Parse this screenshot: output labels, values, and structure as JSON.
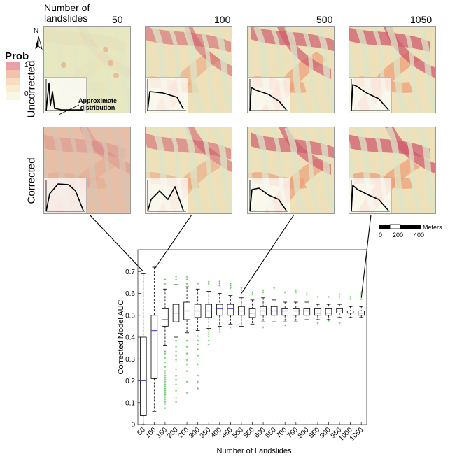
{
  "header": {
    "count_label": "Number of\nlandslides",
    "columns": [
      "50",
      "100",
      "500",
      "1050"
    ]
  },
  "rows": [
    "Uncorrected",
    "Corrected"
  ],
  "legend": {
    "title": "Prob",
    "ticks": [
      "1",
      "0"
    ],
    "colors": [
      "#e8a0a6",
      "#f1c3ad",
      "#f6dcc0",
      "#f8edcf",
      "#fbf6e4"
    ]
  },
  "north_label": "N",
  "annotation": "Approximate\ndistribution",
  "scalebar": {
    "unit": "Meters",
    "ticks": [
      "0",
      "200",
      "400"
    ]
  },
  "colors": {
    "uncorrected_low": "#e8e8c0",
    "ridge": "#cf5b6e",
    "mid": "#eca079",
    "valley": "#dce6c8",
    "outlier": "#3db23d",
    "box": "#000000",
    "median": "#5555cc"
  },
  "chart_data": {
    "type": "box",
    "title": "",
    "xlabel": "Number of Landslides",
    "ylabel": "Corrected Model AUC",
    "ylim": [
      0,
      0.8
    ],
    "yticks": [
      0,
      0.1,
      0.2,
      0.3,
      0.4,
      0.5,
      0.6,
      0.7
    ],
    "categories": [
      "50",
      "100",
      "150",
      "200",
      "250",
      "300",
      "350",
      "400",
      "450",
      "500",
      "550",
      "600",
      "650",
      "700",
      "750",
      "800",
      "850",
      "900",
      "950",
      "1000",
      "1050"
    ],
    "boxes": [
      {
        "min": 0.0,
        "q1": 0.04,
        "median": 0.2,
        "q3": 0.4,
        "max": 0.69
      },
      {
        "min": 0.06,
        "q1": 0.21,
        "median": 0.43,
        "q3": 0.5,
        "max": 0.72
      },
      {
        "min": 0.36,
        "q1": 0.45,
        "median": 0.48,
        "q3": 0.53,
        "max": 0.62
      },
      {
        "min": 0.4,
        "q1": 0.47,
        "median": 0.51,
        "q3": 0.55,
        "max": 0.64
      },
      {
        "min": 0.42,
        "q1": 0.48,
        "median": 0.52,
        "q3": 0.56,
        "max": 0.63
      },
      {
        "min": 0.43,
        "q1": 0.49,
        "median": 0.52,
        "q3": 0.55,
        "max": 0.62
      },
      {
        "min": 0.44,
        "q1": 0.49,
        "median": 0.52,
        "q3": 0.55,
        "max": 0.61
      },
      {
        "min": 0.45,
        "q1": 0.5,
        "median": 0.53,
        "q3": 0.55,
        "max": 0.6
      },
      {
        "min": 0.46,
        "q1": 0.5,
        "median": 0.53,
        "q3": 0.55,
        "max": 0.59
      },
      {
        "min": 0.45,
        "q1": 0.5,
        "median": 0.52,
        "q3": 0.54,
        "max": 0.58
      },
      {
        "min": 0.46,
        "q1": 0.49,
        "median": 0.51,
        "q3": 0.53,
        "max": 0.57
      },
      {
        "min": 0.47,
        "q1": 0.5,
        "median": 0.52,
        "q3": 0.54,
        "max": 0.58
      },
      {
        "min": 0.47,
        "q1": 0.5,
        "median": 0.52,
        "q3": 0.54,
        "max": 0.57
      },
      {
        "min": 0.47,
        "q1": 0.5,
        "median": 0.52,
        "q3": 0.53,
        "max": 0.56
      },
      {
        "min": 0.47,
        "q1": 0.5,
        "median": 0.52,
        "q3": 0.53,
        "max": 0.56
      },
      {
        "min": 0.48,
        "q1": 0.5,
        "median": 0.52,
        "q3": 0.53,
        "max": 0.56
      },
      {
        "min": 0.48,
        "q1": 0.5,
        "median": 0.51,
        "q3": 0.53,
        "max": 0.55
      },
      {
        "min": 0.48,
        "q1": 0.5,
        "median": 0.51,
        "q3": 0.53,
        "max": 0.55
      },
      {
        "min": 0.49,
        "q1": 0.51,
        "median": 0.52,
        "q3": 0.53,
        "max": 0.55
      },
      {
        "min": 0.49,
        "q1": 0.51,
        "median": 0.51,
        "q3": 0.52,
        "max": 0.54
      },
      {
        "min": 0.49,
        "q1": 0.5,
        "median": 0.51,
        "q3": 0.52,
        "max": 0.54
      }
    ],
    "outliers": [
      [],
      [],
      [
        0.07,
        0.09,
        0.1,
        0.11,
        0.12,
        0.13,
        0.14,
        0.15,
        0.16,
        0.17,
        0.18,
        0.19,
        0.2,
        0.21,
        0.22,
        0.23,
        0.24,
        0.26,
        0.28,
        0.3,
        0.32,
        0.33,
        0.64,
        0.66
      ],
      [
        0.1,
        0.12,
        0.15,
        0.18,
        0.2,
        0.22,
        0.25,
        0.29,
        0.31,
        0.33,
        0.35,
        0.38,
        0.66,
        0.67
      ],
      [
        0.14,
        0.19,
        0.24,
        0.27,
        0.29,
        0.32,
        0.35,
        0.38,
        0.64,
        0.66,
        0.67
      ],
      [
        0.16,
        0.19,
        0.22,
        0.27,
        0.31,
        0.34,
        0.36,
        0.38,
        0.4,
        0.64
      ],
      [
        0.36,
        0.38,
        0.4,
        0.41,
        0.42,
        0.43,
        0.64,
        0.65
      ],
      [
        0.42,
        0.43,
        0.44,
        0.63,
        0.64,
        0.65
      ],
      [
        0.44,
        0.62,
        0.63,
        0.64
      ],
      [
        0.61,
        0.62
      ],
      [
        0.59,
        0.6
      ],
      [
        0.44,
        0.6,
        0.61
      ],
      [
        0.62
      ],
      [
        0.45,
        0.6
      ],
      [
        0.6,
        0.61
      ],
      [
        0.59,
        0.6
      ],
      [
        0.46,
        0.58
      ],
      [
        0.47,
        0.58
      ],
      [
        0.46,
        0.58,
        0.59
      ],
      [
        0.57,
        0.58
      ],
      [
        0.57,
        0.59,
        0.6
      ]
    ]
  }
}
